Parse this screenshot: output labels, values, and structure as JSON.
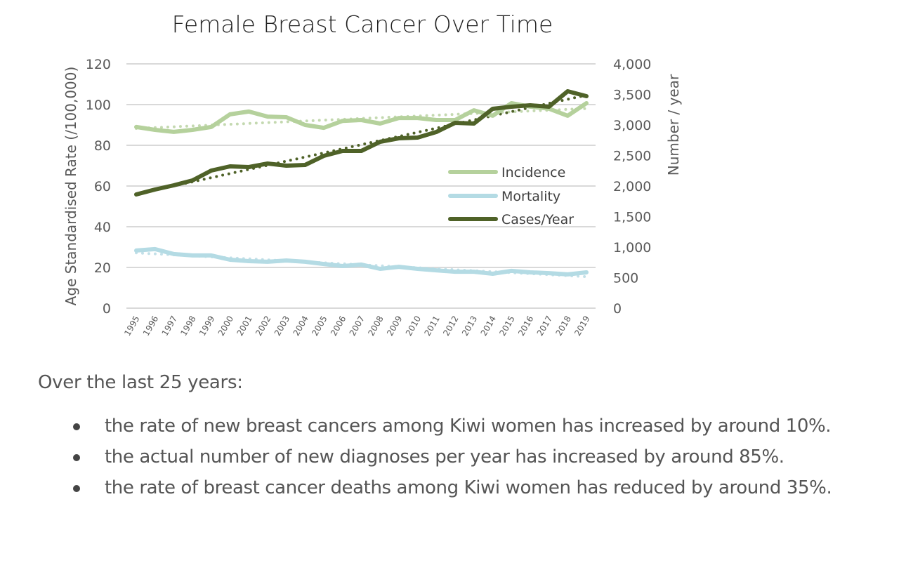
{
  "chart_data": {
    "type": "line",
    "title": "Female Breast Cancer Over Time",
    "xlabel": "",
    "ylabel": "Age Standardised Rate (/100,000)",
    "y2label": "Number / year",
    "ylim": [
      0,
      120
    ],
    "y2lim": [
      0,
      4000
    ],
    "yticks": [
      "0",
      "20",
      "40",
      "60",
      "80",
      "100",
      "120"
    ],
    "y2ticks": [
      "0",
      "500",
      "1,000",
      "1,500",
      "2,000",
      "2,500",
      "3,000",
      "3,500",
      "4,000"
    ],
    "grid": true,
    "legend_position": "center-right",
    "categories": [
      "1995",
      "1996",
      "1997",
      "1998",
      "1999",
      "2000",
      "2001",
      "2002",
      "2003",
      "2004",
      "2005",
      "2006",
      "2007",
      "2008",
      "2009",
      "2010",
      "2011",
      "2012",
      "2013",
      "2014",
      "2015",
      "2016",
      "2017",
      "2018",
      "2019"
    ],
    "series": [
      {
        "name": "Incidence",
        "axis": "left",
        "color": "#b5d19c",
        "trendline": "linear-dotted",
        "values": [
          89.0,
          87.6,
          86.6,
          87.6,
          89.0,
          95.2,
          96.6,
          94.1,
          93.8,
          90.0,
          88.6,
          92.0,
          92.4,
          90.7,
          93.4,
          93.4,
          92.4,
          92.4,
          97.2,
          94.5,
          100.7,
          99.0,
          98.0,
          94.5,
          100.7
        ]
      },
      {
        "name": "Mortality",
        "axis": "left",
        "color": "#b4dbe4",
        "trendline": "linear-dotted",
        "values": [
          28.3,
          29.0,
          26.6,
          25.9,
          25.9,
          23.8,
          23.1,
          22.8,
          23.4,
          22.8,
          21.7,
          20.7,
          21.4,
          19.3,
          20.3,
          19.3,
          18.6,
          17.9,
          17.9,
          16.9,
          18.3,
          17.6,
          17.2,
          16.6,
          17.6
        ]
      },
      {
        "name": "Cases/Year",
        "axis": "right",
        "color": "#4f6228",
        "trendline": "linear-dotted",
        "values": [
          1862,
          1943,
          2011,
          2092,
          2253,
          2322,
          2310,
          2368,
          2333,
          2345,
          2494,
          2575,
          2575,
          2724,
          2782,
          2793,
          2885,
          3034,
          3023,
          3264,
          3299,
          3322,
          3299,
          3552,
          3471
        ]
      }
    ]
  },
  "summary": {
    "lead": "Over the last 25 years:",
    "bullets": [
      "the rate of new breast cancers among Kiwi women has increased by around 10%.",
      "the actual number of new diagnoses per year has increased by around 85%.",
      "the rate of breast cancer deaths among Kiwi women has reduced by around 35%."
    ]
  }
}
